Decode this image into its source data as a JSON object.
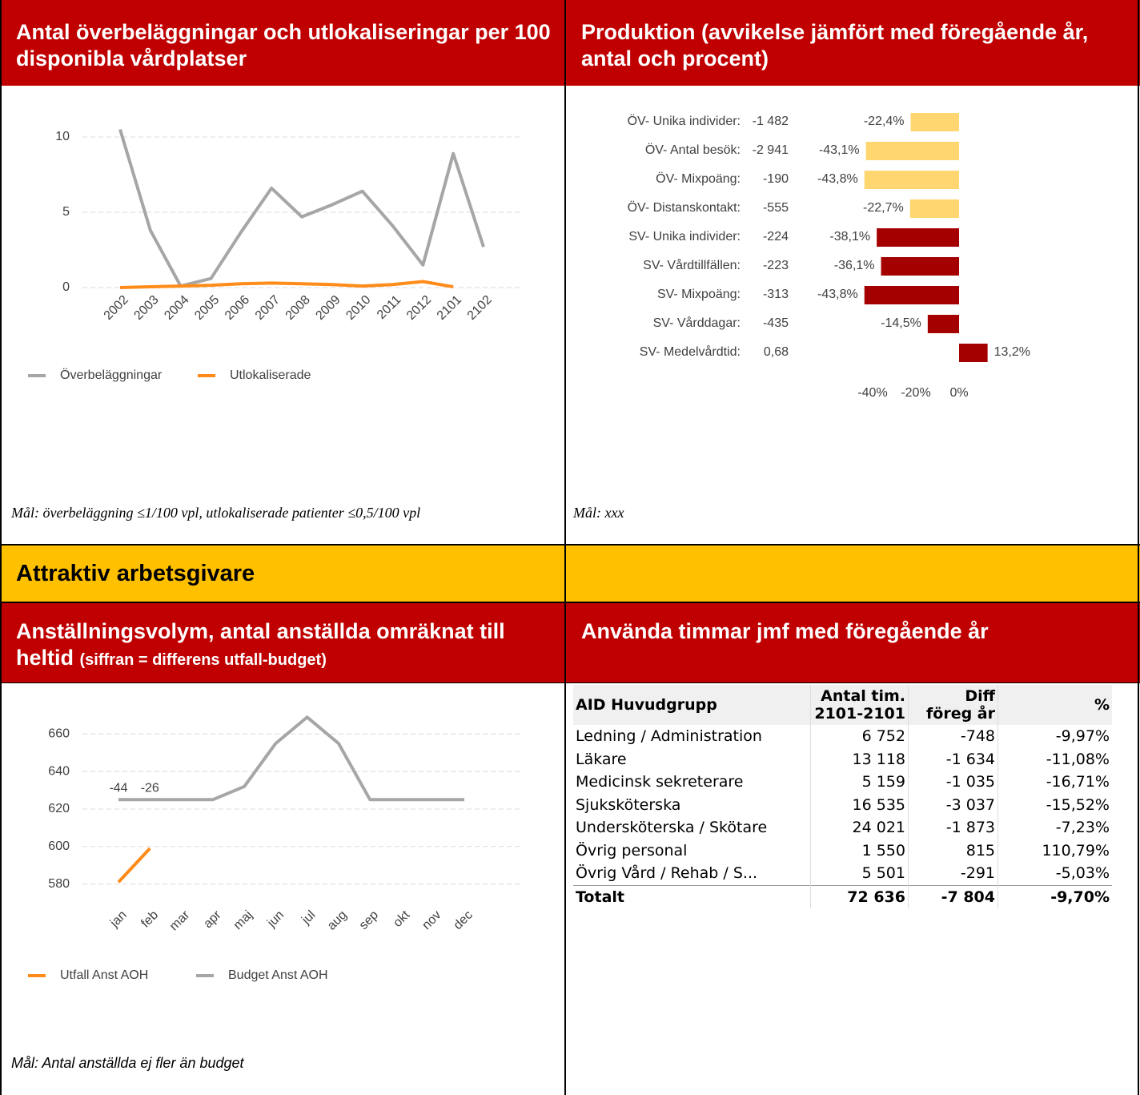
{
  "panels": [
    {
      "title": "Antal överbeläggningar och utlokaliseringar per 100 disponibla vårdplatser",
      "note": "Mål: överbeläggning ≤1/100 vpl, utlokaliserade patienter ≤0,5/100 vpl"
    },
    {
      "title": "Produktion (avvikelse jämfört med föregående år, antal och procent)",
      "note": "Mål: xxx"
    },
    {
      "title": "Anställningsvolym, antal anställda omräknat till heltid",
      "subtitle": "(siffran = differens utfall-budget)",
      "note": "Mål: Antal anställda ej fler än budget"
    },
    {
      "title": "Använda timmar jmf med föregående år"
    }
  ],
  "section": "Attraktiv arbetsgivare",
  "chart_data": [
    {
      "type": "line",
      "categories": [
        "2002",
        "2003",
        "2004",
        "2005",
        "2006",
        "2007",
        "2008",
        "2009",
        "2010",
        "2011",
        "2012",
        "2101",
        "2102"
      ],
      "series": [
        {
          "name": "Överbeläggningar",
          "color": "#a6a6a6",
          "values": [
            10.5,
            3.8,
            0.1,
            0.6,
            3.7,
            6.6,
            4.7,
            5.5,
            6.4,
            4.1,
            1.5,
            8.9,
            2.7
          ]
        },
        {
          "name": "Utlokaliserade",
          "color": "#ff8c1a",
          "values": [
            0,
            0.05,
            0.1,
            0.15,
            0.25,
            0.3,
            0.25,
            0.2,
            0.1,
            0.2,
            0.4,
            0.05,
            null
          ]
        }
      ],
      "ylim": [
        0,
        11
      ],
      "yticks": [
        0,
        5,
        10
      ],
      "grid": true,
      "legend": "bottom-left"
    },
    {
      "type": "bar",
      "orientation": "horizontal",
      "categories": [
        "ÖV- Unika individer:",
        "ÖV- Antal besök:",
        "ÖV- Mixpoäng:",
        "ÖV- Distanskontakt:",
        "SV- Unika individer:",
        "SV- Vårdtillfällen:",
        "SV- Mixpoäng:",
        "SV- Vårddagar:",
        "SV- Medelvårdtid:"
      ],
      "amounts": [
        "-1 482",
        "-2 941",
        "-190",
        "-555",
        "-224",
        "-223",
        "-313",
        "-435",
        "0,68"
      ],
      "values": [
        -22.4,
        -43.1,
        -43.8,
        -22.7,
        -38.1,
        -36.1,
        -43.8,
        -14.5,
        13.2
      ],
      "value_labels": [
        "-22,4%",
        "-43,1%",
        "-43,8%",
        "-22,7%",
        "-38,1%",
        "-36,1%",
        "-43,8%",
        "-14,5%",
        "13,2%"
      ],
      "colors": [
        "#ffd670",
        "#ffd670",
        "#ffd670",
        "#ffd670",
        "#a50000",
        "#a50000",
        "#a50000",
        "#a50000",
        "#a50000"
      ],
      "xlim": [
        -45,
        15
      ],
      "xticks": [
        {
          "value": -40,
          "label": "-40%"
        },
        {
          "value": -20,
          "label": "-20%"
        },
        {
          "value": 0,
          "label": "0%"
        }
      ]
    },
    {
      "type": "line",
      "categories": [
        "jan",
        "feb",
        "mar",
        "apr",
        "maj",
        "jun",
        "jul",
        "aug",
        "sep",
        "okt",
        "nov",
        "dec"
      ],
      "series": [
        {
          "name": "Utfall Anst AOH",
          "color": "#ff8c1a",
          "values": [
            581,
            599,
            null,
            null,
            null,
            null,
            null,
            null,
            null,
            null,
            null,
            null
          ]
        },
        {
          "name": "Budget Anst AOH",
          "color": "#a6a6a6",
          "values": [
            625,
            625,
            625,
            625,
            632,
            655,
            669,
            655,
            625,
            625,
            625,
            625
          ]
        }
      ],
      "annotations": [
        -44,
        -26
      ],
      "ylim": [
        570,
        670
      ],
      "yticks": [
        580,
        600,
        620,
        640,
        660
      ],
      "grid": true,
      "legend": "bottom-left"
    }
  ],
  "table": {
    "columns": [
      "AID Huvudgrupp",
      "Antal tim.\n2101-2101",
      "Diff\nföreg år",
      "%"
    ],
    "rows": [
      [
        "Ledning / Administration",
        "6 752",
        "-748",
        "-9,97%"
      ],
      [
        "Läkare",
        "13 118",
        "-1 634",
        "-11,08%"
      ],
      [
        "Medicinsk sekreterare",
        "5 159",
        "-1 035",
        "-16,71%"
      ],
      [
        "Sjuksköterska",
        "16 535",
        "-3 037",
        "-15,52%"
      ],
      [
        "Undersköterska / Skötare",
        "24 021",
        "-1 873",
        "-7,23%"
      ],
      [
        "Övrig personal",
        "1 550",
        "815",
        "110,79%"
      ],
      [
        "Övrig Vård / Rehab / S...",
        "5 501",
        "-291",
        "-5,03%"
      ],
      [
        "Totalt",
        "72 636",
        "-7 804",
        "-9,70%"
      ]
    ]
  }
}
